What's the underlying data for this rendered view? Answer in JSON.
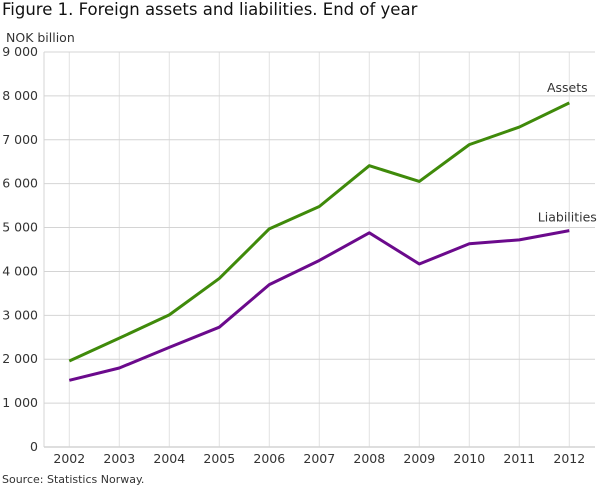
{
  "chart_data": {
    "type": "line",
    "title": "Figure 1. Foreign assets and liabilities. End of year",
    "ylabel": "NOK billion",
    "xlabel": "",
    "source": "Source: Statistics Norway.",
    "x": [
      2002,
      2003,
      2004,
      2005,
      2006,
      2007,
      2008,
      2009,
      2010,
      2011,
      2012
    ],
    "ylim": [
      0,
      9000
    ],
    "yticks": [
      0,
      1000,
      2000,
      3000,
      4000,
      5000,
      6000,
      7000,
      8000,
      9000
    ],
    "ytick_labels": [
      "0",
      "1 000",
      "2 000",
      "3 000",
      "4 000",
      "5 000",
      "6 000",
      "7 000",
      "8 000",
      "9 000"
    ],
    "grid": true,
    "series": [
      {
        "name": "Assets",
        "color": "#3f8a0a",
        "values": [
          1960,
          2480,
          3010,
          3840,
          4970,
          5480,
          6410,
          6050,
          6890,
          7290,
          7840
        ]
      },
      {
        "name": "Liabilities",
        "color": "#6b0a8c",
        "values": [
          1520,
          1800,
          2270,
          2730,
          3700,
          4250,
          4880,
          4170,
          4630,
          4720,
          4930
        ]
      }
    ]
  }
}
